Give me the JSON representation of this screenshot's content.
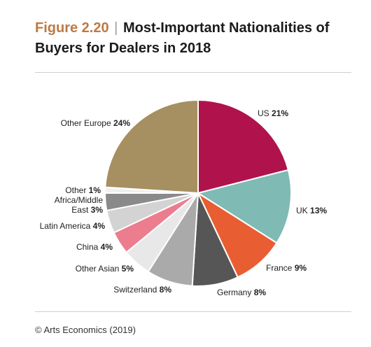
{
  "header": {
    "figure_label": "Figure 2.20",
    "separator": "|",
    "title": "Most-Important Nationalities of Buyers for Dealers in 2018"
  },
  "footer": {
    "credit": "© Arts Economics (2019)"
  },
  "chart_data": {
    "type": "pie",
    "unit": "%",
    "slices": [
      {
        "label": "US",
        "value": 21,
        "color": "#b0134c"
      },
      {
        "label": "UK",
        "value": 13,
        "color": "#7fbab4"
      },
      {
        "label": "France",
        "value": 9,
        "color": "#e95d32"
      },
      {
        "label": "Germany",
        "value": 8,
        "color": "#565656"
      },
      {
        "label": "Switzerland",
        "value": 8,
        "color": "#aaaaaa"
      },
      {
        "label": "Other Asian",
        "value": 5,
        "color": "#e8e8e8"
      },
      {
        "label": "China",
        "value": 4,
        "color": "#ec7d8e"
      },
      {
        "label": "Latin America",
        "value": 4,
        "color": "#d3d3d3"
      },
      {
        "label": "Africa/Middle East",
        "label_lines": [
          "Africa/Middle",
          "East"
        ],
        "value": 3,
        "color": "#8a8a8a"
      },
      {
        "label": "Other",
        "value": 1,
        "color": "#f0f0f0"
      },
      {
        "label": "Other Europe",
        "value": 24,
        "color": "#a68f60"
      }
    ]
  }
}
